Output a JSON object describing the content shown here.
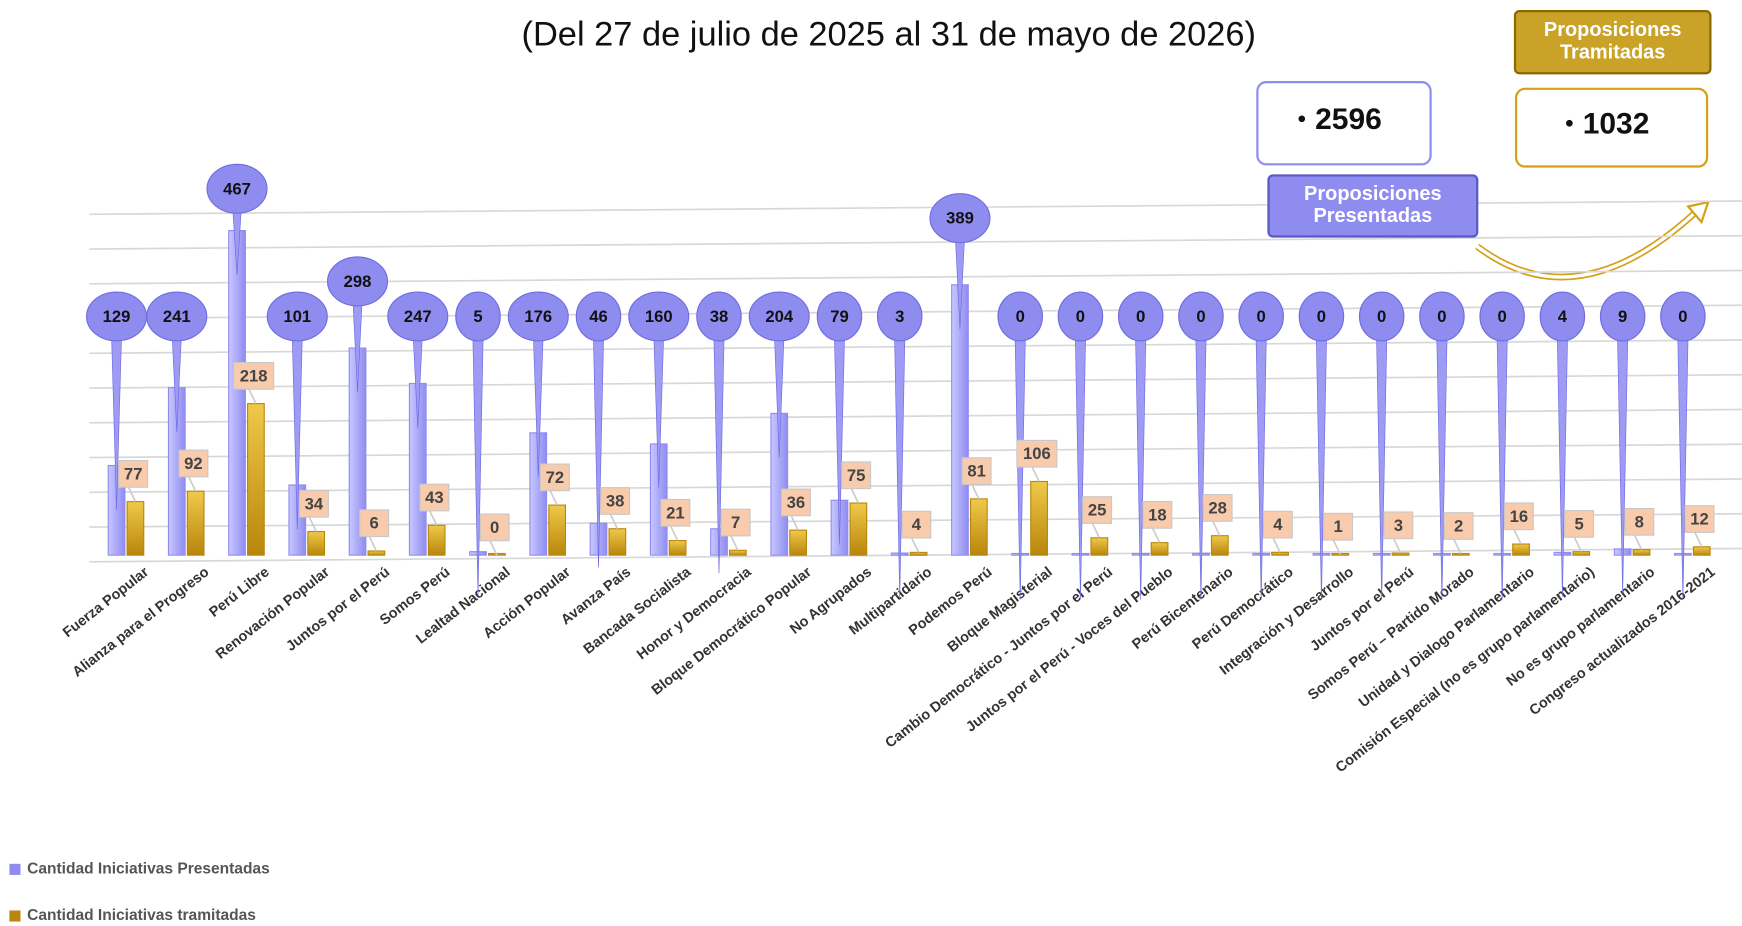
{
  "chart_data": {
    "type": "bar",
    "title": "(Del 27 de julio de 2025 al 31 de mayo de 2026)",
    "categories": [
      "Fuerza Popular",
      "Alianza para el Progreso",
      "Perú Libre",
      "Renovación Popular",
      "Juntos por el Perú",
      "Somos Perú",
      "Lealtad Nacional",
      "Acción Popular",
      "Avanza País",
      "Bancada Socialista",
      "Honor y Democracia",
      "Bloque Democrático Popular",
      "No Agrupados",
      "Multipartidario",
      "Podemos Perú",
      "Bloque Magisterial",
      "Cambio Democrático - Juntos por el Perú",
      "Juntos por el Perú - Voces del Pueblo",
      "Perú Bicentenario",
      "Perú Democrático",
      "Integración y Desarrollo",
      "Juntos por el Perú",
      "Somos Perú – Partido Morado",
      "Unidad y Dialogo Parlamentario",
      "Comisión Especial (no es grupo parlamentario)",
      "No es grupo parlamentario",
      "Congreso actualizados 2016-2021"
    ],
    "series": [
      {
        "name": "Cantidad Iniciativas Presentadas",
        "color": "#8f8cf0",
        "values": [
          129,
          241,
          467,
          101,
          298,
          247,
          5,
          176,
          46,
          160,
          38,
          204,
          79,
          3,
          389,
          0,
          0,
          0,
          0,
          0,
          0,
          0,
          0,
          0,
          4,
          9,
          0
        ]
      },
      {
        "name": "Cantidad Iniciativas tramitadas",
        "color": "#b8860b",
        "values": [
          77,
          92,
          218,
          34,
          6,
          43,
          0,
          72,
          38,
          21,
          7,
          36,
          75,
          4,
          81,
          106,
          25,
          18,
          28,
          4,
          1,
          3,
          2,
          16,
          5,
          8,
          12
        ]
      }
    ],
    "ylim": [
      0,
      500
    ],
    "yticks": [
      0,
      50,
      100,
      150,
      200,
      250,
      300,
      350,
      400,
      450,
      500
    ],
    "grid": true,
    "legend": "bottom-left",
    "summary": [
      {
        "label": "Proposiciones Presentadas",
        "value": 2596
      },
      {
        "label": "Proposiciones Tramitadas",
        "value": 1032
      }
    ]
  }
}
